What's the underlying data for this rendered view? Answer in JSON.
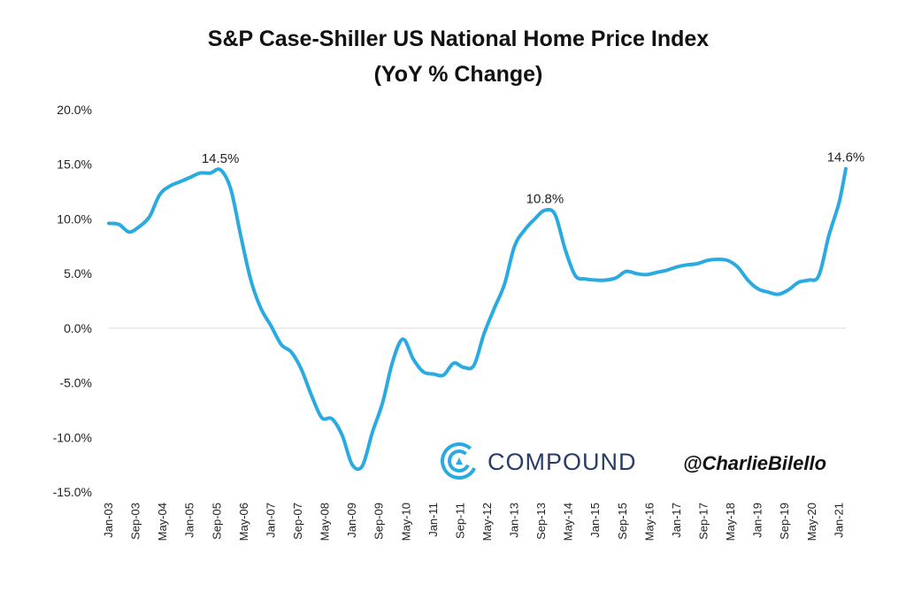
{
  "chart_data": {
    "type": "line",
    "title": "S&P Case-Shiller US National Home Price Index",
    "subtitle": "(YoY % Change)",
    "xlabel": "",
    "ylabel": "",
    "ylim": [
      -15,
      20
    ],
    "yticks": [
      "20.0%",
      "15.0%",
      "10.0%",
      "5.0%",
      "0.0%",
      "-5.0%",
      "-10.0%",
      "-15.0%"
    ],
    "ytick_values": [
      20,
      15,
      10,
      5,
      0,
      -5,
      -10,
      -15
    ],
    "xtick_labels": [
      "Jan-03",
      "Sep-03",
      "May-04",
      "Jan-05",
      "Sep-05",
      "May-06",
      "Jan-07",
      "Sep-07",
      "May-08",
      "Jan-09",
      "Sep-09",
      "May-10",
      "Jan-11",
      "Sep-11",
      "May-12",
      "Jan-13",
      "Sep-13",
      "May-14",
      "Jan-15",
      "Sep-15",
      "May-16",
      "Jan-17",
      "Sep-17",
      "May-18",
      "Jan-19",
      "Sep-19",
      "May-20",
      "Jan-21"
    ],
    "grid": false,
    "line_color": "#29abe2",
    "series": [
      {
        "name": "",
        "x": [
          "Jan-03",
          "Apr-03",
          "Jul-03",
          "Oct-03",
          "Jan-04",
          "Apr-04",
          "Jul-04",
          "Oct-04",
          "Jan-05",
          "Apr-05",
          "Jul-05",
          "Oct-05",
          "Jan-06",
          "Apr-06",
          "Jul-06",
          "Oct-06",
          "Jan-07",
          "Apr-07",
          "Jul-07",
          "Oct-07",
          "Jan-08",
          "Apr-08",
          "Jul-08",
          "Oct-08",
          "Jan-09",
          "Apr-09",
          "Jul-09",
          "Oct-09",
          "Jan-10",
          "Apr-10",
          "Jul-10",
          "Oct-10",
          "Jan-11",
          "Apr-11",
          "Jul-11",
          "Oct-11",
          "Jan-12",
          "Apr-12",
          "Jul-12",
          "Oct-12",
          "Jan-13",
          "Apr-13",
          "Jul-13",
          "Oct-13",
          "Jan-14",
          "Apr-14",
          "Jul-14",
          "Oct-14",
          "Jan-15",
          "Apr-15",
          "Jul-15",
          "Oct-15",
          "Jan-16",
          "Apr-16",
          "Jul-16",
          "Oct-16",
          "Jan-17",
          "Apr-17",
          "Jul-17",
          "Oct-17",
          "Jan-18",
          "Apr-18",
          "Jul-18",
          "Oct-18",
          "Jan-19",
          "Apr-19",
          "Jul-19",
          "Oct-19",
          "Jan-20",
          "Apr-20",
          "Jul-20",
          "Oct-20",
          "Jan-21",
          "Mar-21"
        ],
        "values": [
          9.6,
          9.5,
          8.8,
          9.3,
          10.2,
          12.2,
          13.0,
          13.4,
          13.8,
          14.2,
          14.2,
          14.5,
          12.8,
          8.5,
          4.4,
          1.8,
          0.2,
          -1.5,
          -2.2,
          -3.8,
          -6.2,
          -8.2,
          -8.3,
          -9.8,
          -12.5,
          -12.6,
          -9.5,
          -6.8,
          -3.0,
          -1.0,
          -2.8,
          -4.0,
          -4.2,
          -4.3,
          -3.2,
          -3.6,
          -3.4,
          -0.5,
          1.8,
          4.0,
          7.5,
          9.0,
          10.0,
          10.8,
          10.4,
          7.2,
          4.8,
          4.5,
          4.4,
          4.4,
          4.6,
          5.2,
          5.0,
          4.9,
          5.1,
          5.3,
          5.6,
          5.8,
          5.9,
          6.2,
          6.3,
          6.2,
          5.6,
          4.4,
          3.6,
          3.3,
          3.1,
          3.5,
          4.2,
          4.4,
          4.8,
          8.5,
          11.5,
          14.6
        ]
      }
    ],
    "annotations": [
      {
        "label": "14.5%",
        "x": "Oct-05",
        "y": 14.5
      },
      {
        "label": "10.8%",
        "x": "Oct-13",
        "y": 10.8
      },
      {
        "label": "14.6%",
        "x": "Mar-21",
        "y": 14.6
      }
    ]
  },
  "branding": {
    "company": "COMPOUND",
    "handle": "@CharlieBilello",
    "logo_color": "#29abe2"
  }
}
